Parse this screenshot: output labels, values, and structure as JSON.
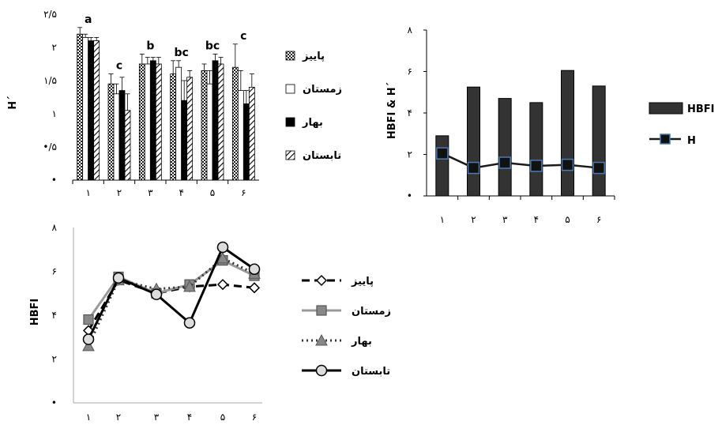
{
  "chart_data": [
    {
      "id": "seasonal-h-bars",
      "type": "bar",
      "title": "",
      "xlabel": "",
      "ylabel": "H´",
      "ylim": [
        0,
        2.5
      ],
      "ytick_labels": [
        "•",
        "•/۵",
        "۱",
        "۱/۵",
        "۲",
        "۲/۵"
      ],
      "categories": [
        "۱",
        "۲",
        "۳",
        "۴",
        "۵",
        "۶"
      ],
      "group_labels": [
        "a",
        "c",
        "b",
        "bc",
        "bc",
        "c"
      ],
      "series": [
        {
          "name": "پاییز",
          "pattern": "checker",
          "values": [
            2.2,
            1.45,
            1.75,
            1.6,
            1.65,
            1.7
          ],
          "errors": [
            0.1,
            0.15,
            0.15,
            0.2,
            0.1,
            0.35
          ]
        },
        {
          "name": "زمستان",
          "pattern": "white",
          "values": [
            2.15,
            1.3,
            1.75,
            1.7,
            1.45,
            1.35
          ],
          "errors": [
            0.05,
            0.15,
            0.1,
            0.1,
            0.2,
            0.3
          ]
        },
        {
          "name": "بهار",
          "pattern": "black",
          "values": [
            2.1,
            1.35,
            1.8,
            1.2,
            1.8,
            1.15
          ],
          "errors": [
            0.05,
            0.2,
            0.05,
            0.3,
            0.1,
            0.2
          ]
        },
        {
          "name": "تابستان",
          "pattern": "hatch",
          "values": [
            2.1,
            1.05,
            1.75,
            1.55,
            1.75,
            1.4
          ],
          "errors": [
            0.05,
            0.25,
            0.1,
            0.1,
            0.1,
            0.2
          ]
        }
      ],
      "legend_position": "right"
    },
    {
      "id": "hbfi-h-combo",
      "type": "bar",
      "title": "",
      "xlabel": "",
      "ylabel": "HBFI & H´",
      "ylim": [
        0,
        8
      ],
      "ytick_labels": [
        "•",
        "۲",
        "۴",
        "۶",
        "۸"
      ],
      "categories": [
        "۱",
        "۲",
        "۳",
        "۴",
        "۵",
        "۶"
      ],
      "series": [
        {
          "name": "HBFI",
          "kind": "bar",
          "values": [
            2.9,
            5.25,
            4.7,
            4.5,
            6.05,
            5.3
          ]
        },
        {
          "name": "H",
          "kind": "line",
          "values": [
            2.05,
            1.35,
            1.6,
            1.45,
            1.5,
            1.35
          ]
        }
      ],
      "legend_position": "right"
    },
    {
      "id": "seasonal-hbfi-lines",
      "type": "line",
      "title": "",
      "xlabel": "",
      "ylabel": "HBFI",
      "ylim": [
        0,
        8
      ],
      "ytick_labels": [
        "•",
        "۲",
        "۴",
        "۶",
        "۸"
      ],
      "categories": [
        "۱",
        "۲",
        "۳",
        "۴",
        "۵",
        "۶"
      ],
      "series": [
        {
          "name": "پاییز",
          "style": "dashed-diamond",
          "values": [
            3.3,
            5.6,
            5.0,
            5.3,
            5.4,
            5.25
          ]
        },
        {
          "name": "زمستان",
          "style": "gray-square",
          "values": [
            3.8,
            5.75,
            5.0,
            5.4,
            6.5,
            5.8
          ]
        },
        {
          "name": "بهار",
          "style": "dotted-triangle",
          "values": [
            2.6,
            5.6,
            5.2,
            5.3,
            6.6,
            5.9
          ]
        },
        {
          "name": "تابستان",
          "style": "solid-circle",
          "values": [
            2.9,
            5.7,
            4.95,
            3.65,
            7.1,
            6.1
          ]
        }
      ],
      "legend_position": "right"
    }
  ]
}
